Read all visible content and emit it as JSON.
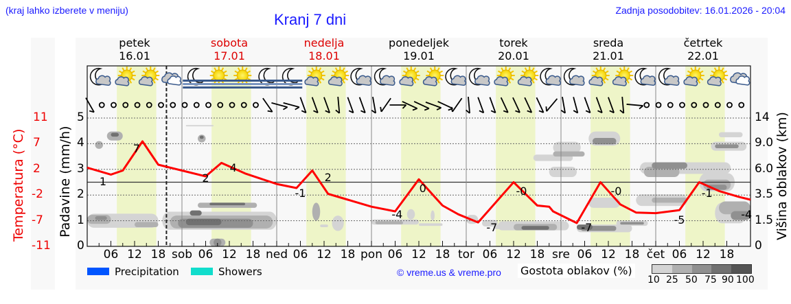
{
  "header": {
    "region_hint": "(kraj lahko izberete v meniju)",
    "title": "Kranj 7 dni",
    "last_update": "Zadnja posodobitev: 16.01.2026 - 20:04"
  },
  "days": [
    {
      "name": "petek",
      "date": "16.01",
      "weekend": false
    },
    {
      "name": "sobota",
      "date": "17.01",
      "weekend": true
    },
    {
      "name": "nedelja",
      "date": "18.01",
      "weekend": true
    },
    {
      "name": "ponedeljek",
      "date": "19.01",
      "weekend": false
    },
    {
      "name": "torek",
      "date": "20.01",
      "weekend": false
    },
    {
      "name": "sreda",
      "date": "21.01",
      "weekend": false
    },
    {
      "name": "četrtek",
      "date": "22.01",
      "weekend": false
    }
  ],
  "axes": {
    "left_temp_label": "Temperatura (°C)",
    "left_precip_label": "Padavine (mm/h)",
    "right_label": "Višina oblakov (km)",
    "temp_ticks": [
      "11",
      "7",
      "2",
      "-2",
      "-7",
      "-11"
    ],
    "precip_ticks": [
      "5",
      "4",
      "3",
      "2",
      "1",
      "0"
    ],
    "cloud_height_ticks": [
      "14",
      "9.0",
      "6.0",
      "3.5",
      "1.5",
      "0"
    ],
    "x_ticks": [
      "06",
      "12",
      "18",
      "sob",
      "06",
      "12",
      "18",
      "ned",
      "06",
      "12",
      "18",
      "pon",
      "06",
      "12",
      "18",
      "tor",
      "06",
      "12",
      "18",
      "sre",
      "06",
      "12",
      "18",
      "čet",
      "06",
      "12",
      "18"
    ]
  },
  "legend": {
    "precipitation": "Precipitation",
    "showers": "Showers",
    "copyright": "© vreme.us & vreme.pro",
    "cloud_density_title": "Gostota oblakov (%)",
    "cloud_density_ticks": [
      "10",
      "25",
      "50",
      "75",
      "90",
      "100"
    ]
  },
  "colors": {
    "title_blue": "#1a1aff",
    "weekend_red": "#dd0000",
    "temp_line": "#ff0000",
    "daylight": "#eef5c8",
    "precipitation": "#0055ff",
    "showers": "#11ddcc"
  },
  "weather_icons": [
    "night-partly-cloudy",
    "day-partly-cloudy",
    "day-partly-cloudy",
    "cloudy",
    "night-fog",
    "day-fog",
    "day-fog",
    "night-fog",
    "night-fog",
    "day-partly-cloudy",
    "day-partly-cloudy",
    "night-partly-cloudy",
    "night-partly-cloudy",
    "day-partly-cloudy",
    "day-partly-cloudy",
    "night-partly-cloudy",
    "night-partly-cloudy",
    "day-partly-cloudy",
    "day-partly-cloudy",
    "night-partly-cloudy",
    "night-partly-cloudy",
    "day-partly-cloudy",
    "day-partly-cloudy",
    "night-partly-cloudy",
    "night-partly-cloudy",
    "day-partly-cloudy",
    "day-partly-cloudy",
    "cloudy"
  ],
  "chart_data": {
    "type": "line",
    "title": "Kranj 7 dni",
    "xlabel": "",
    "ylabel": "Temperatura (°C)",
    "y2label": "Padavine (mm/h)",
    "y3label": "Višina oblakov (km)",
    "x_range_hours": [
      0,
      168
    ],
    "current_time_marker_hour": 20.07,
    "ylim_temp": [
      -11,
      11
    ],
    "ylim_precip": [
      0,
      5
    ],
    "grid": true,
    "series": [
      {
        "name": "Temperatura",
        "color": "#ff0000",
        "x_hours": [
          0,
          6,
          9,
          14,
          18,
          24,
          30,
          34,
          40,
          48,
          53,
          57,
          61,
          66,
          72,
          78,
          84,
          90,
          94,
          99,
          108,
          114,
          117,
          118,
          124,
          130,
          135,
          139,
          144,
          150,
          155,
          160,
          165,
          168
        ],
        "values": [
          2.5,
          1.3,
          2.0,
          7.0,
          3.0,
          2.0,
          1.0,
          3.3,
          1.5,
          -0.3,
          -1.0,
          2.0,
          -2.0,
          -3.0,
          -4.2,
          -5.0,
          0.5,
          -4.0,
          -5.5,
          -6.9,
          0.0,
          -4.0,
          -4.2,
          -5.0,
          -7.0,
          0.0,
          -3.8,
          -5.2,
          -5.3,
          -4.8,
          0.0,
          -1.5,
          -2.5,
          -3.0
        ]
      }
    ],
    "temp_labels": [
      {
        "hour": 4,
        "value": "1"
      },
      {
        "hour": 12.5,
        "value": "7"
      },
      {
        "hour": 30,
        "value": "2"
      },
      {
        "hour": 37,
        "value": "4"
      },
      {
        "hour": 54,
        "value": "-1"
      },
      {
        "hour": 61,
        "value": "2"
      },
      {
        "hour": 78.5,
        "value": "-4"
      },
      {
        "hour": 85,
        "value": "0"
      },
      {
        "hour": 102.5,
        "value": "-7"
      },
      {
        "hour": 110,
        "value": "-0"
      },
      {
        "hour": 126.5,
        "value": "-7"
      },
      {
        "hour": 134,
        "value": "-0"
      },
      {
        "hour": 150,
        "value": "-5"
      },
      {
        "hour": 157,
        "value": "-1"
      },
      {
        "hour": 167,
        "value": "-4"
      }
    ],
    "precipitation": [],
    "showers": [],
    "cloud_density_scale_pct": [
      10,
      25,
      50,
      75,
      90,
      100
    ]
  }
}
